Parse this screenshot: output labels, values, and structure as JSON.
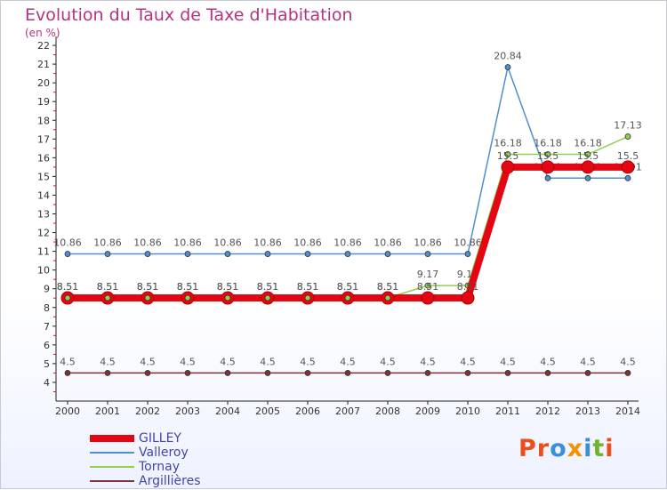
{
  "title": "Evolution du Taux de Taxe d'Habitation",
  "unit_label": "(en %)",
  "logo": {
    "text": "Proxiti",
    "letters": [
      "P",
      "r",
      "o",
      "x",
      "i",
      "t",
      "i"
    ],
    "colors": [
      "#e94e1b",
      "#e94e1b",
      "#3b8fd6",
      "#f39200",
      "#3b8fd6",
      "#6fb52c",
      "#e94e1b"
    ]
  },
  "chart_data": {
    "type": "line",
    "title": "Evolution du Taux de Taxe d'Habitation",
    "ylabel": "(en %)",
    "xlabel": "",
    "x": [
      "2000",
      "2001",
      "2002",
      "2003",
      "2004",
      "2005",
      "2006",
      "2007",
      "2008",
      "2009",
      "2010",
      "2011",
      "2012",
      "2013",
      "2014"
    ],
    "ylim": [
      4,
      22
    ],
    "yticks": [
      4,
      5,
      6,
      7,
      8,
      9,
      10,
      11,
      12,
      13,
      14,
      15,
      16,
      17,
      18,
      19,
      20,
      21,
      22
    ],
    "grid": false,
    "legend_position": "bottom-left",
    "series": [
      {
        "name": "GILLEY",
        "color": "#e30613",
        "values": [
          8.51,
          8.51,
          8.51,
          8.51,
          8.51,
          8.51,
          8.51,
          8.51,
          8.51,
          8.51,
          8.51,
          15.5,
          15.5,
          15.5,
          15.5
        ],
        "labels": [
          "8.51",
          "8.51",
          "8.51",
          "8.51",
          "8.51",
          "8.51",
          "8.51",
          "8.51",
          "8.51",
          "8.51",
          "8.51",
          "15.5",
          "15.5",
          "15.5",
          "15.5"
        ]
      },
      {
        "name": "Valleroy",
        "color": "#4f8fcf",
        "values": [
          10.86,
          10.86,
          10.86,
          10.86,
          10.86,
          10.86,
          10.86,
          10.86,
          10.86,
          10.86,
          10.86,
          20.84,
          14.91,
          14.91,
          14.91
        ],
        "labels": [
          "10.86",
          "10.86",
          "10.86",
          "10.86",
          "10.86",
          "10.86",
          "10.86",
          "10.86",
          "10.86",
          "10.86",
          "10.86",
          "20.84",
          "14.91",
          "14.91",
          "14.91"
        ]
      },
      {
        "name": "Tornay",
        "color": "#8fd14f",
        "values": [
          8.51,
          8.51,
          8.51,
          8.51,
          8.51,
          8.51,
          8.51,
          8.51,
          8.51,
          9.17,
          9.17,
          16.18,
          16.18,
          16.18,
          17.13
        ],
        "labels": [
          "8.51",
          "8.51",
          "8.51",
          "8.51",
          "8.51",
          "8.51",
          "8.51",
          "8.51",
          "8.51",
          "9.17",
          "9.17",
          "16.18",
          "16.18",
          "16.18",
          "17.13"
        ]
      },
      {
        "name": "Argillières",
        "color": "#7b3535",
        "values": [
          4.5,
          4.5,
          4.5,
          4.5,
          4.5,
          4.5,
          4.5,
          4.5,
          4.5,
          4.5,
          4.5,
          4.5,
          4.5,
          4.5,
          4.5
        ],
        "labels": [
          "4.5",
          "4.5",
          "4.5",
          "4.5",
          "4.5",
          "4.5",
          "4.5",
          "4.5",
          "4.5",
          "4.5",
          "4.5",
          "4.5",
          "4.5",
          "4.5",
          "4.5"
        ]
      }
    ]
  }
}
